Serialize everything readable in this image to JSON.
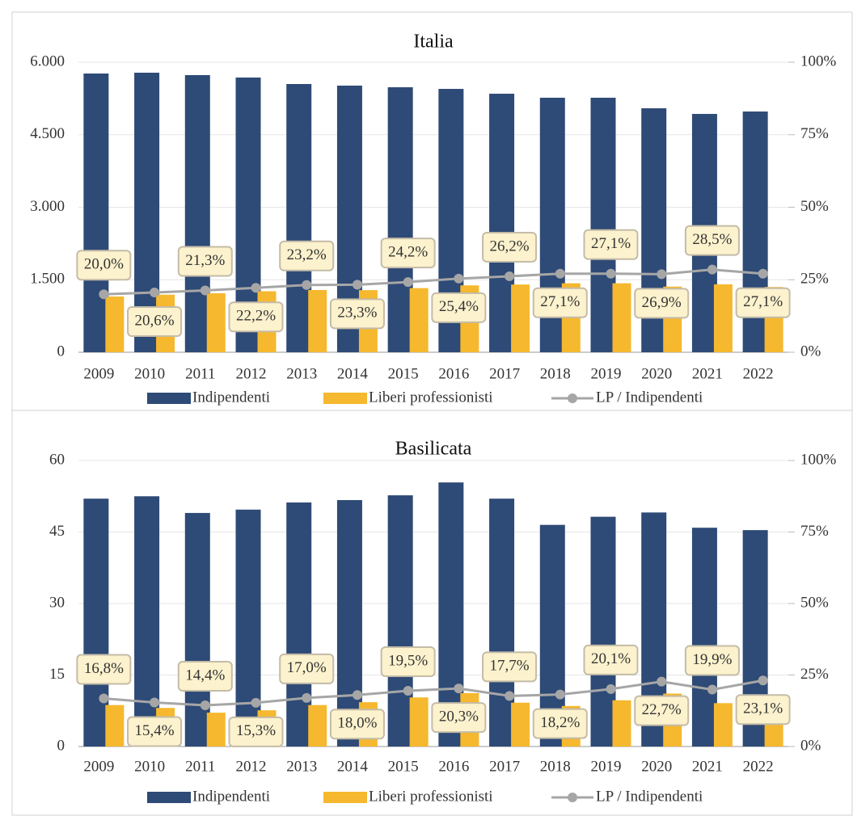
{
  "chart_data": [
    {
      "type": "bar",
      "title": "Italia",
      "categories": [
        "2009",
        "2010",
        "2011",
        "2012",
        "2013",
        "2014",
        "2015",
        "2016",
        "2017",
        "2018",
        "2019",
        "2020",
        "2021",
        "2022"
      ],
      "series": [
        {
          "name": "Indipendenti",
          "color": "#2e4a76",
          "values": [
            5766,
            5783,
            5733,
            5683,
            5549,
            5516,
            5482,
            5448,
            5348,
            5265,
            5265,
            5047,
            4930,
            4980
          ]
        },
        {
          "name": "Liberi professionisti",
          "color": "#f5b82e",
          "values": [
            1153,
            1191,
            1221,
            1262,
            1287,
            1285,
            1327,
            1384,
            1401,
            1427,
            1427,
            1358,
            1405,
            1350
          ]
        },
        {
          "name": "LP / Indipendenti",
          "type": "line",
          "axis": "y2",
          "color": "#a6a6a6",
          "values": [
            20.0,
            20.6,
            21.3,
            22.2,
            23.2,
            23.3,
            24.2,
            25.4,
            26.2,
            27.1,
            27.1,
            26.9,
            28.5,
            27.1
          ],
          "value_labels": [
            "20,0%",
            "20,6%",
            "21,3%",
            "22,2%",
            "23,2%",
            "23,3%",
            "24,2%",
            "25,4%",
            "26,2%",
            "27,1%",
            "27,1%",
            "26,9%",
            "28,5%",
            "27,1%"
          ]
        }
      ],
      "ylim": [
        0,
        6000
      ],
      "yticks": [
        0,
        {
          "value": 1500,
          "label": "1.500"
        },
        {
          "value": 3000,
          "label": "3.000"
        },
        {
          "value": 4500,
          "label": "4.500"
        },
        {
          "value": 6000,
          "label": "6.000"
        }
      ],
      "y2lim": [
        0,
        100
      ],
      "y2ticks": [
        {
          "value": 0,
          "label": "0%"
        },
        {
          "value": 25,
          "label": "25%"
        },
        {
          "value": 50,
          "label": "50%"
        },
        {
          "value": 75,
          "label": "75%"
        },
        {
          "value": 100,
          "label": "100%"
        }
      ],
      "grid": true,
      "legend": "bottom"
    },
    {
      "type": "bar",
      "title": "Basilicata",
      "categories": [
        "2009",
        "2010",
        "2011",
        "2012",
        "2013",
        "2014",
        "2015",
        "2016",
        "2017",
        "2018",
        "2019",
        "2020",
        "2021",
        "2022"
      ],
      "series": [
        {
          "name": "Indipendenti",
          "color": "#2e4a76",
          "values": [
            52.0,
            52.5,
            49.0,
            49.7,
            51.2,
            51.7,
            52.7,
            55.4,
            52.0,
            46.5,
            48.2,
            49.1,
            45.9,
            45.4
          ]
        },
        {
          "name": "Liberi professionisti",
          "color": "#f5b82e",
          "values": [
            8.7,
            8.1,
            7.1,
            7.6,
            8.7,
            9.3,
            10.3,
            11.2,
            9.2,
            8.5,
            9.7,
            11.1,
            9.1,
            10.5
          ]
        },
        {
          "name": "LP / Indipendenti",
          "type": "line",
          "axis": "y2",
          "color": "#a6a6a6",
          "values": [
            16.8,
            15.4,
            14.4,
            15.3,
            17.0,
            18.0,
            19.5,
            20.3,
            17.7,
            18.2,
            20.1,
            22.7,
            19.9,
            23.1
          ],
          "value_labels": [
            "16,8%",
            "15,4%",
            "14,4%",
            "15,3%",
            "17,0%",
            "18,0%",
            "19,5%",
            "20,3%",
            "17,7%",
            "18,2%",
            "20,1%",
            "22,7%",
            "19,9%",
            "23,1%"
          ]
        }
      ],
      "ylim": [
        0,
        60
      ],
      "yticks": [
        0,
        15,
        30,
        45,
        60
      ],
      "y2lim": [
        0,
        100
      ],
      "y2ticks": [
        {
          "value": 0,
          "label": "0%"
        },
        {
          "value": 25,
          "label": "25%"
        },
        {
          "value": 50,
          "label": "50%"
        },
        {
          "value": 75,
          "label": "75%"
        },
        {
          "value": 100,
          "label": "100%"
        }
      ],
      "grid": true,
      "legend": "bottom"
    }
  ]
}
